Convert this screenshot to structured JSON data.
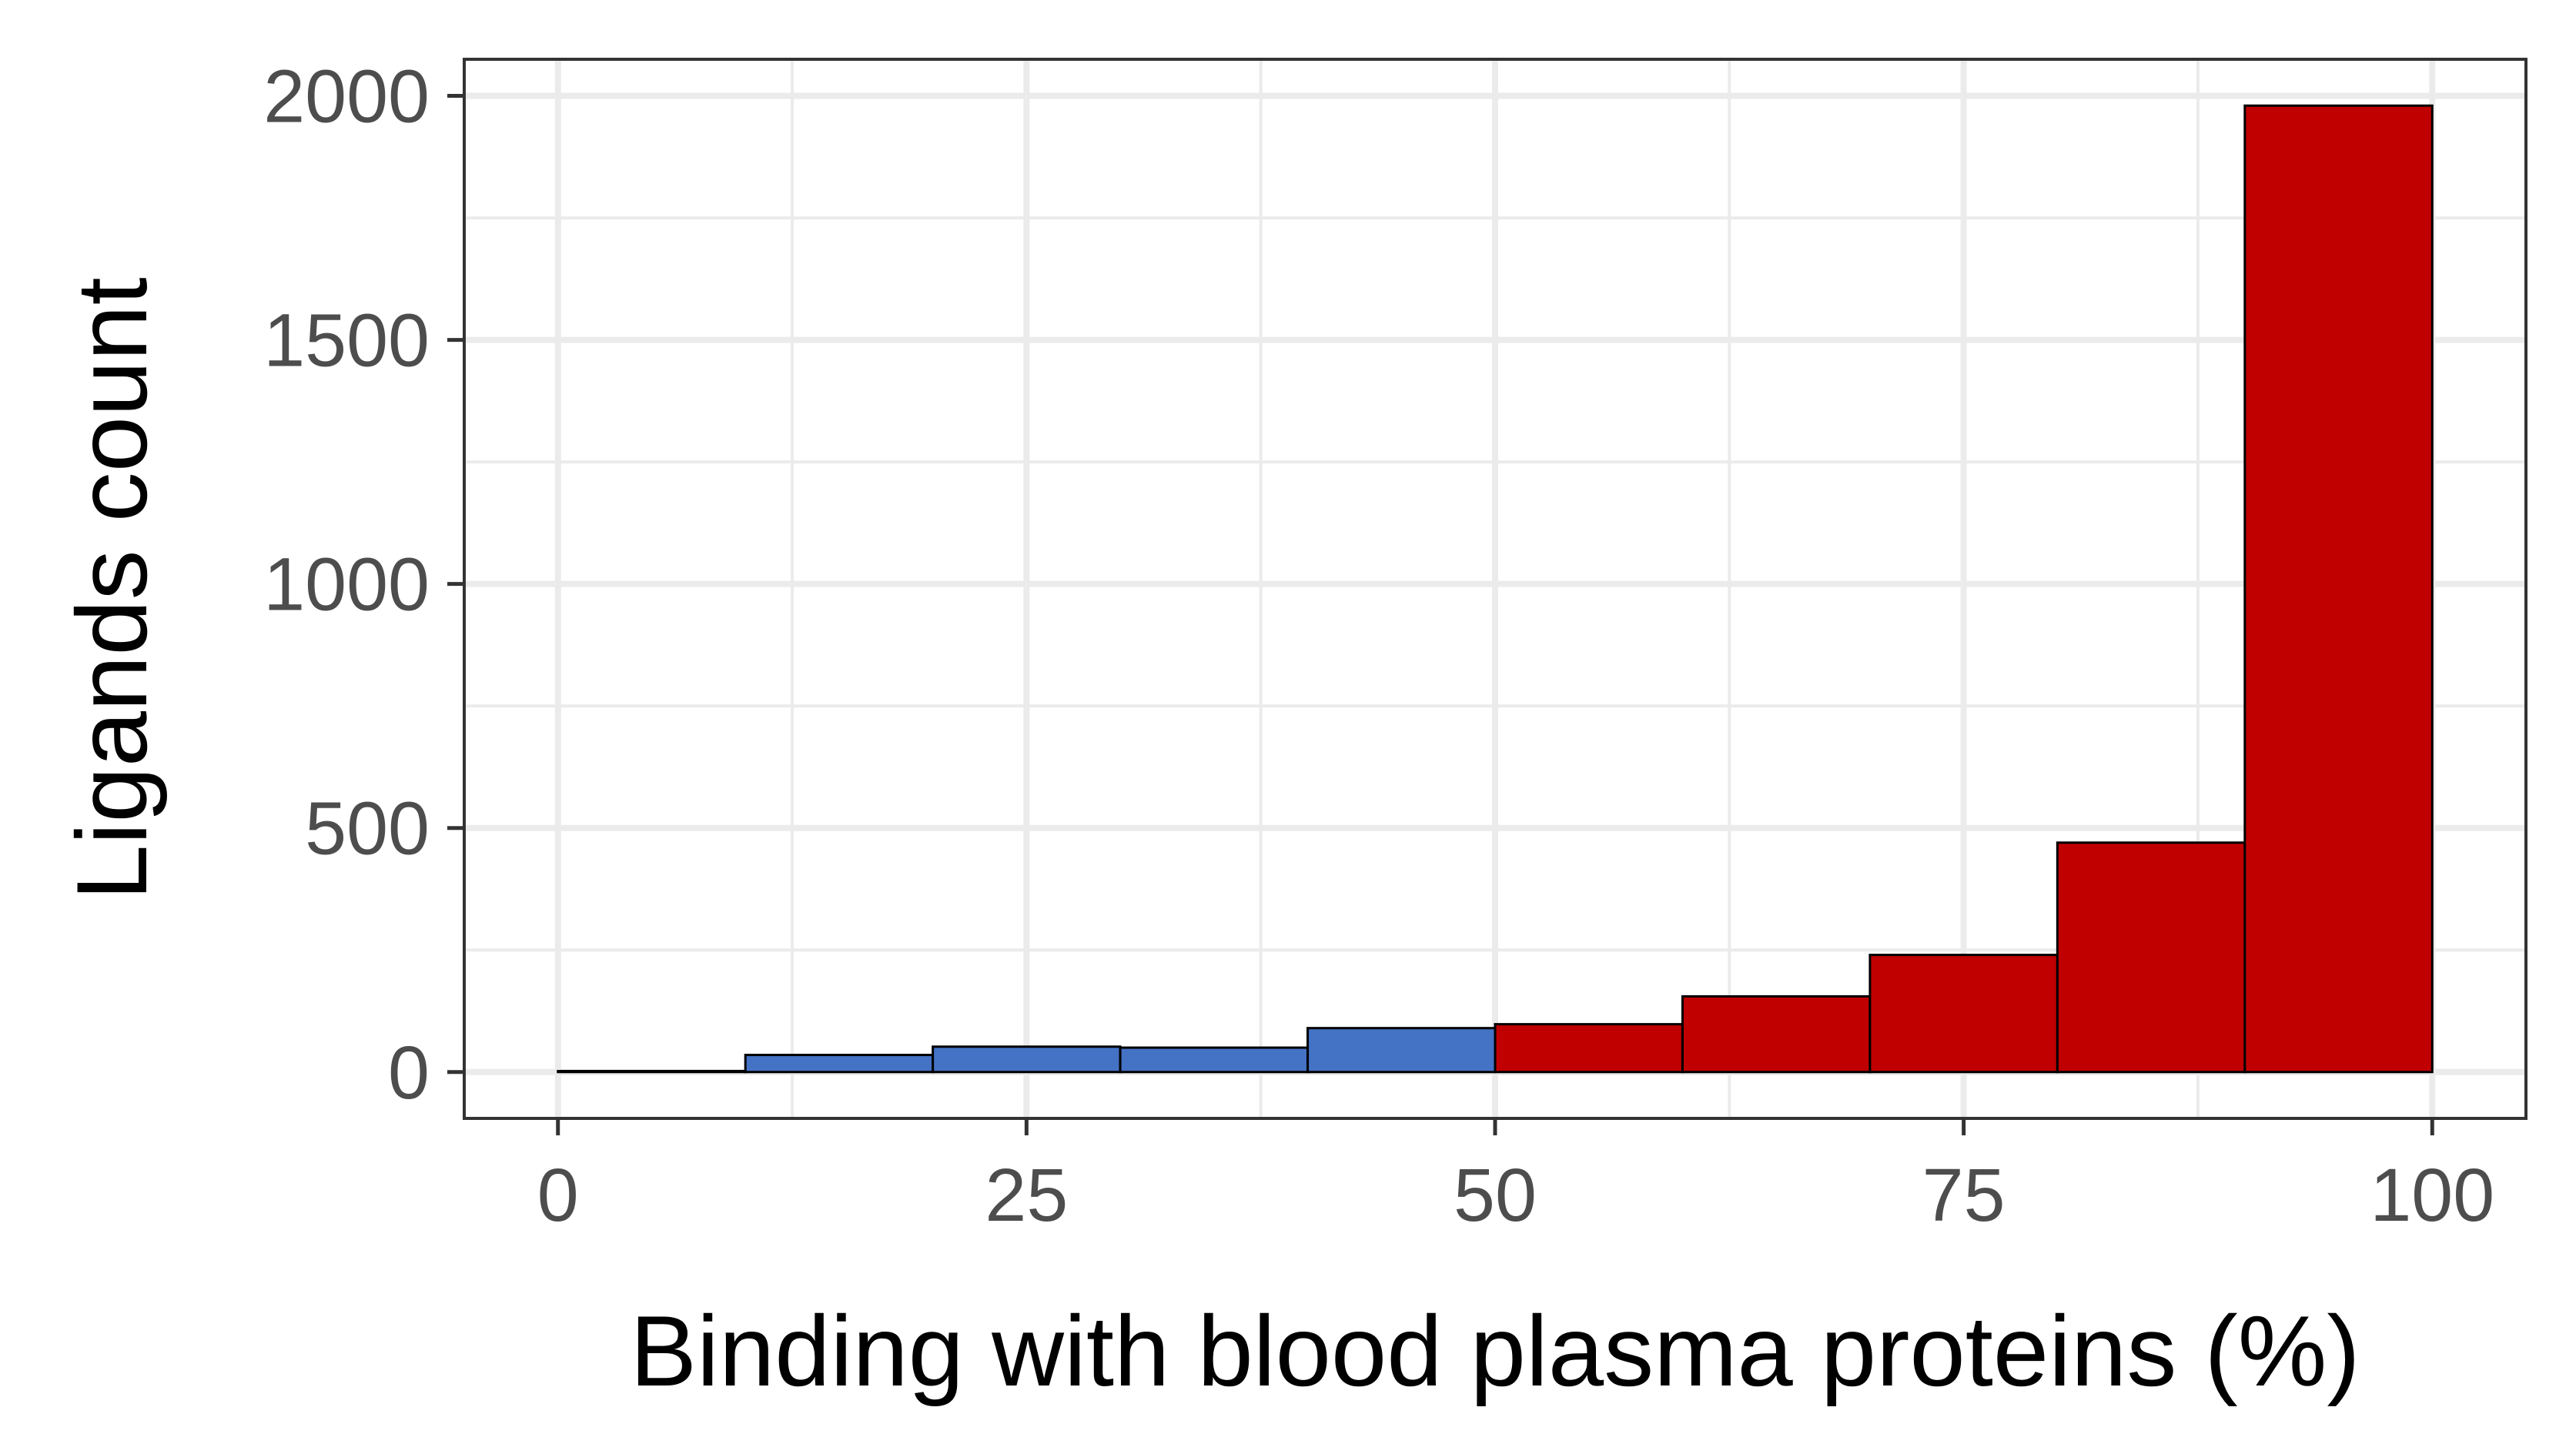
{
  "chart_data": {
    "type": "bar",
    "title": "",
    "xlabel": "Binding with blood plasma proteins (%)",
    "ylabel": "Ligands count",
    "xlim": [
      -5,
      105
    ],
    "ylim": [
      -95,
      2075
    ],
    "x_ticks": [
      0,
      25,
      50,
      75,
      100
    ],
    "x_tick_labels": [
      "0",
      "25",
      "50",
      "75",
      "100"
    ],
    "y_ticks": [
      0,
      500,
      1000,
      1500,
      2000
    ],
    "y_tick_labels": [
      "0",
      "500",
      "1000",
      "1500",
      "2000"
    ],
    "grid": true,
    "legend": "none",
    "bins": [
      {
        "x0": 0,
        "x1": 10,
        "value": 2,
        "color": "#4472c4"
      },
      {
        "x0": 10,
        "x1": 20,
        "value": 35,
        "color": "#4472c4"
      },
      {
        "x0": 20,
        "x1": 30,
        "value": 52,
        "color": "#4472c4"
      },
      {
        "x0": 30,
        "x1": 40,
        "value": 50,
        "color": "#4472c4"
      },
      {
        "x0": 40,
        "x1": 50,
        "value": 90,
        "color": "#4472c4"
      },
      {
        "x0": 50,
        "x1": 60,
        "value": 98,
        "color": "#c00000"
      },
      {
        "x0": 60,
        "x1": 70,
        "value": 155,
        "color": "#c00000"
      },
      {
        "x0": 70,
        "x1": 80,
        "value": 240,
        "color": "#c00000"
      },
      {
        "x0": 80,
        "x1": 90,
        "value": 470,
        "color": "#c00000"
      },
      {
        "x0": 90,
        "x1": 100,
        "value": 1980,
        "color": "#c00000"
      }
    ],
    "colors": {
      "low_binding": "#4472c4",
      "high_binding": "#c00000",
      "bar_outline": "#000000",
      "grid": "#ebebeb",
      "panel_border": "#333333"
    }
  }
}
